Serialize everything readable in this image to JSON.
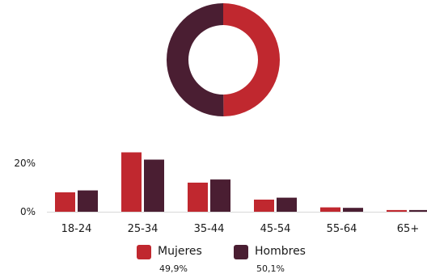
{
  "chart_data": [
    {
      "type": "pie",
      "donut": true,
      "slices": [
        {
          "name": "Mujeres",
          "value": 49.9
        },
        {
          "name": "Hombres",
          "value": 50.1
        }
      ]
    },
    {
      "type": "bar",
      "categories": [
        "18-24",
        "25-34",
        "35-44",
        "45-54",
        "55-64",
        "65+"
      ],
      "series": [
        {
          "name": "Mujeres",
          "values": [
            8.0,
            24.5,
            12.0,
            5.0,
            1.8,
            0.7
          ]
        },
        {
          "name": "Hombres",
          "values": [
            8.8,
            21.5,
            13.3,
            5.8,
            1.6,
            0.7
          ]
        }
      ],
      "yticks": [
        {
          "value": 0,
          "label": "0%"
        },
        {
          "value": 20,
          "label": "20%"
        }
      ],
      "ylim": [
        0,
        30
      ],
      "grid": false
    }
  ],
  "legend": {
    "mujeres": {
      "label": "Mujeres",
      "pct": "49,9%"
    },
    "hombres": {
      "label": "Hombres",
      "pct": "50,1%"
    }
  },
  "colors": {
    "mujeres": "#c0282f",
    "hombres": "#4a1e32",
    "axis": "#d9d9d9",
    "text": "#1a1a1a"
  }
}
